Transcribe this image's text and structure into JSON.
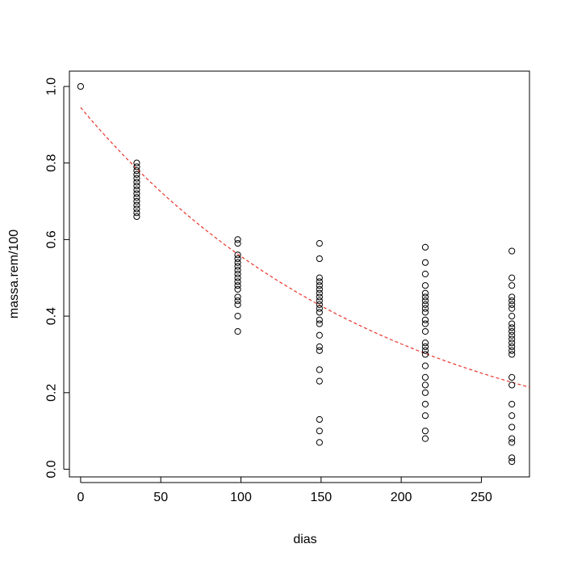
{
  "chart_data": {
    "type": "scatter",
    "xlabel": "dias",
    "ylabel": "massa.rem/100",
    "xlim": [
      -7,
      280
    ],
    "ylim": [
      -0.02,
      1.04
    ],
    "xticks": [
      0,
      50,
      100,
      150,
      200,
      250
    ],
    "yticks": [
      0.0,
      0.2,
      0.4,
      0.6,
      0.8,
      1.0
    ],
    "xtick_labels": [
      "0",
      "50",
      "100",
      "150",
      "200",
      "250"
    ],
    "ytick_labels": [
      "0.0",
      "0.2",
      "0.4",
      "0.6",
      "0.8",
      "1.0"
    ],
    "grid": false,
    "legend": "none",
    "point_color": "#000000",
    "groups": [
      {
        "x": 0,
        "y": [
          1.0
        ]
      },
      {
        "x": 35,
        "y": [
          0.8,
          0.79,
          0.78,
          0.77,
          0.76,
          0.75,
          0.74,
          0.73,
          0.72,
          0.71,
          0.7,
          0.69,
          0.68,
          0.67,
          0.66
        ]
      },
      {
        "x": 98,
        "y": [
          0.6,
          0.59,
          0.56,
          0.55,
          0.54,
          0.53,
          0.52,
          0.51,
          0.5,
          0.49,
          0.48,
          0.47,
          0.45,
          0.44,
          0.43,
          0.4,
          0.36
        ]
      },
      {
        "x": 149,
        "y": [
          0.59,
          0.55,
          0.5,
          0.49,
          0.48,
          0.47,
          0.46,
          0.45,
          0.44,
          0.43,
          0.42,
          0.41,
          0.39,
          0.38,
          0.35,
          0.32,
          0.31,
          0.26,
          0.23,
          0.13,
          0.1,
          0.07
        ]
      },
      {
        "x": 215,
        "y": [
          0.58,
          0.54,
          0.51,
          0.48,
          0.46,
          0.45,
          0.44,
          0.43,
          0.42,
          0.41,
          0.39,
          0.38,
          0.36,
          0.33,
          0.32,
          0.31,
          0.3,
          0.27,
          0.24,
          0.22,
          0.2,
          0.17,
          0.14,
          0.1,
          0.08
        ]
      },
      {
        "x": 269,
        "y": [
          0.57,
          0.5,
          0.48,
          0.45,
          0.44,
          0.43,
          0.42,
          0.4,
          0.38,
          0.37,
          0.36,
          0.35,
          0.34,
          0.33,
          0.32,
          0.31,
          0.3,
          0.24,
          0.22,
          0.17,
          0.14,
          0.11,
          0.08,
          0.07,
          0.03,
          0.02
        ]
      }
    ],
    "fitted_curve": {
      "style": "dashed",
      "color": "#e8332a",
      "model": "y = a * exp(-k * x)",
      "a": 0.945,
      "k": 0.0053
    }
  }
}
